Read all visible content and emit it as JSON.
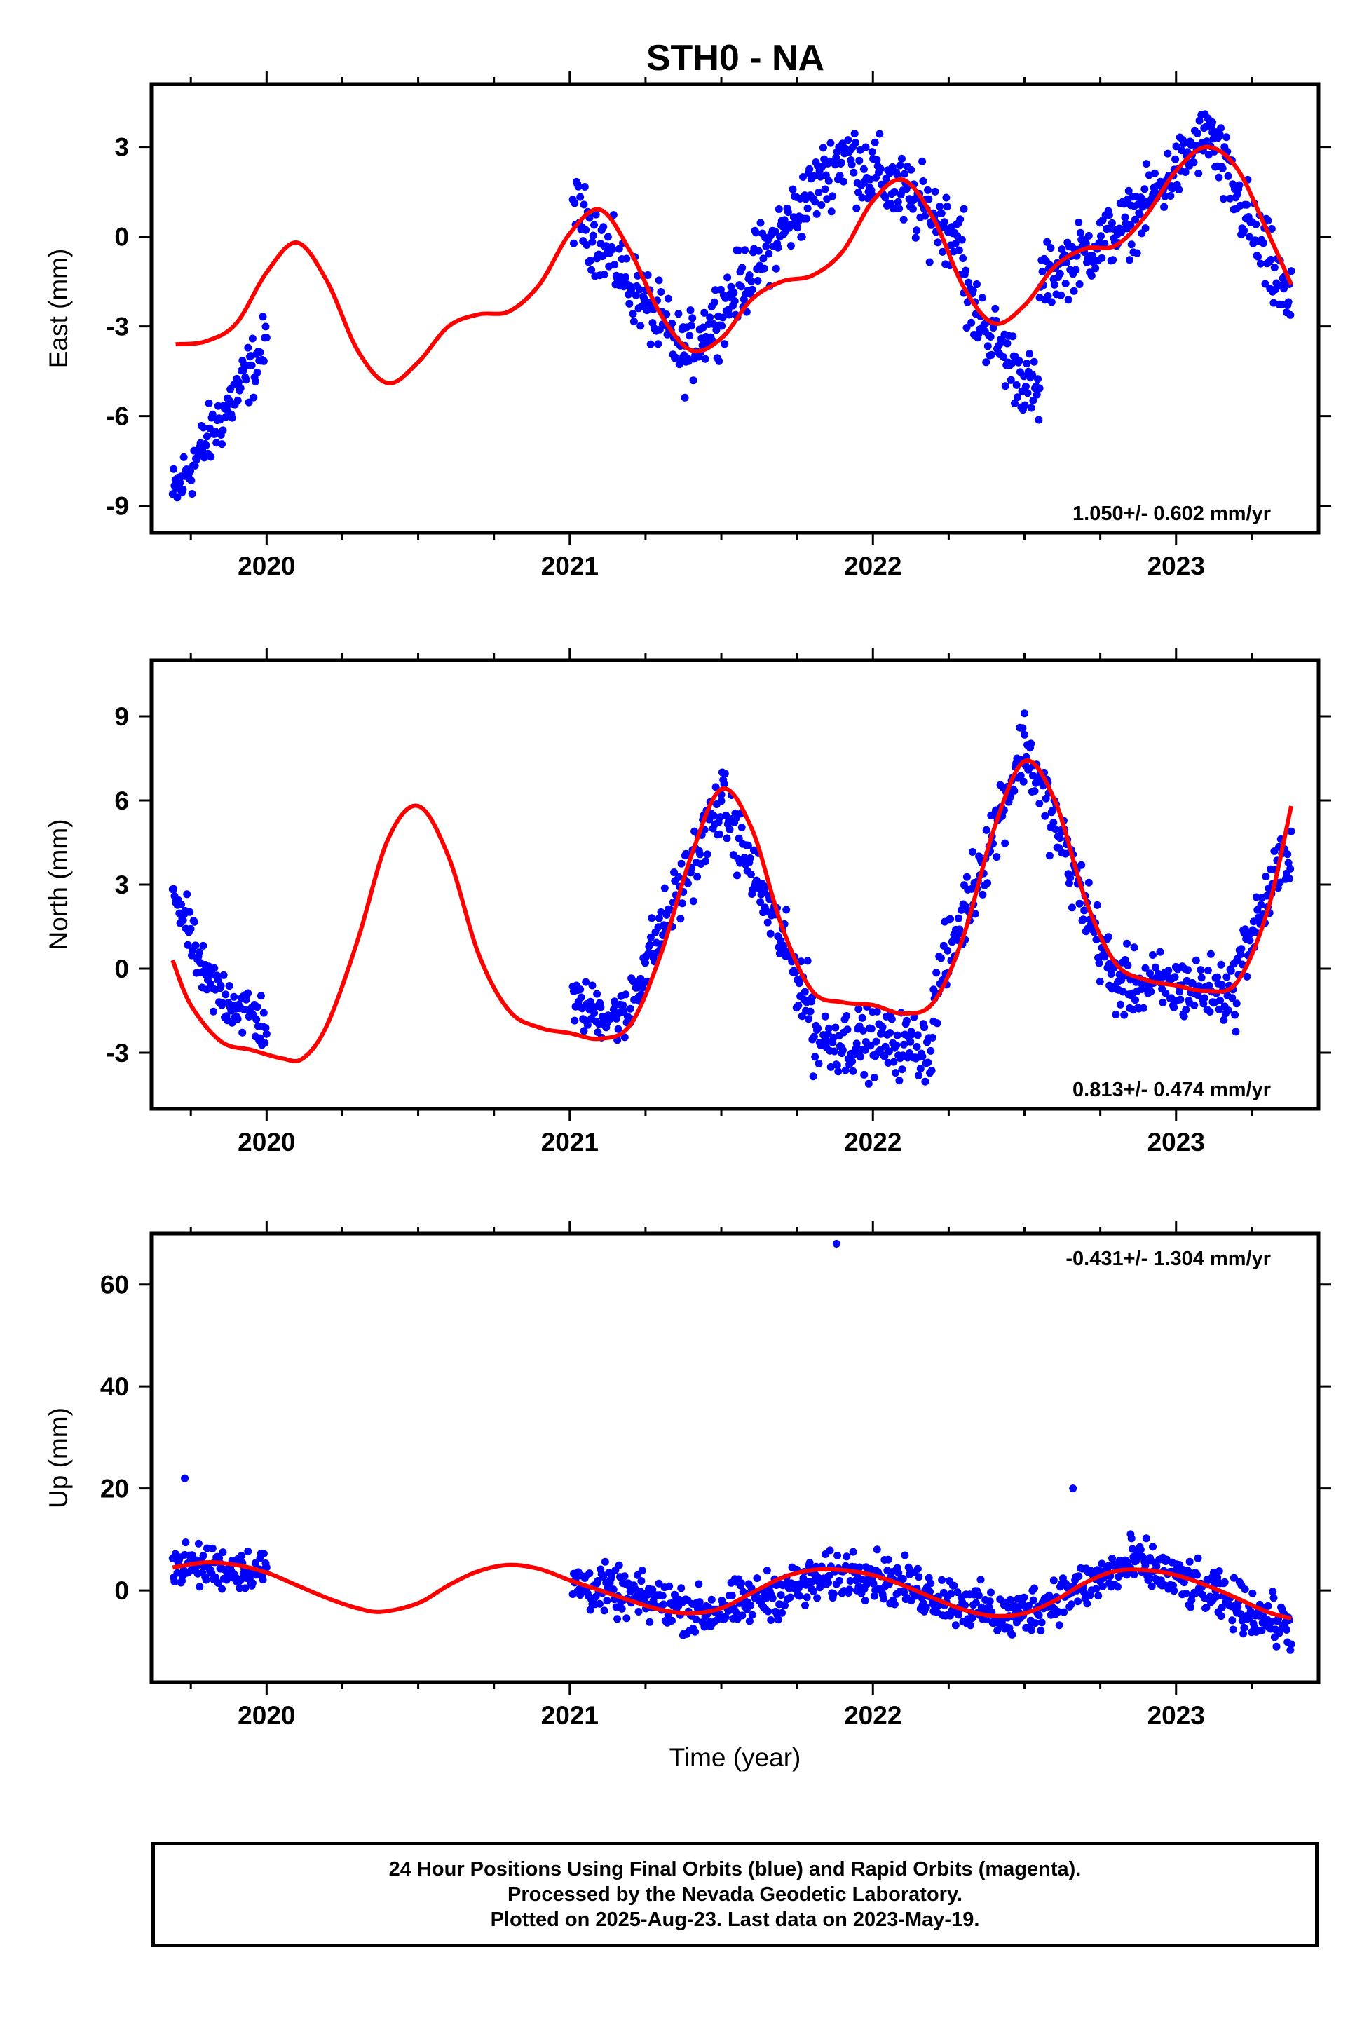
{
  "title": "STH0 - NA",
  "footer": {
    "line1": "24 Hour Positions Using Final Orbits (blue) and Rapid Orbits (magenta).",
    "line2": "Processed by the Nevada Geodetic Laboratory.",
    "line3": "Plotted on 2025-Aug-23. Last data on 2023-May-19."
  },
  "colors": {
    "points": "#0000ff",
    "model": "#ff0000",
    "frame": "#000000"
  },
  "chart_data": [
    {
      "type": "scatter",
      "name": "east",
      "title": "STH0 - NA",
      "ylabel": "East (mm)",
      "xlabel": "",
      "xlim": [
        2019.62,
        2023.47
      ],
      "ylim": [
        -9.9,
        5.1
      ],
      "yticks": [
        -9,
        -6,
        -3,
        0,
        3
      ],
      "xticks": [
        2020,
        2021,
        2022,
        2023
      ],
      "rate_text": "1.050+/- 0.602 mm/yr",
      "rate_position": "bottom-right",
      "model": [
        [
          2019.7,
          -3.6
        ],
        [
          2019.8,
          -3.5
        ],
        [
          2019.9,
          -2.9
        ],
        [
          2020.0,
          -1.2
        ],
        [
          2020.1,
          -0.2
        ],
        [
          2020.2,
          -1.5
        ],
        [
          2020.3,
          -3.8
        ],
        [
          2020.4,
          -4.9
        ],
        [
          2020.5,
          -4.2
        ],
        [
          2020.6,
          -3.0
        ],
        [
          2020.7,
          -2.6
        ],
        [
          2020.8,
          -2.5
        ],
        [
          2020.9,
          -1.6
        ],
        [
          2021.0,
          0.1
        ],
        [
          2021.1,
          0.9
        ],
        [
          2021.2,
          -0.5
        ],
        [
          2021.3,
          -2.6
        ],
        [
          2021.4,
          -3.8
        ],
        [
          2021.5,
          -3.4
        ],
        [
          2021.6,
          -2.1
        ],
        [
          2021.7,
          -1.5
        ],
        [
          2021.8,
          -1.3
        ],
        [
          2021.9,
          -0.5
        ],
        [
          2022.0,
          1.2
        ],
        [
          2022.1,
          1.9
        ],
        [
          2022.2,
          0.6
        ],
        [
          2022.3,
          -1.7
        ],
        [
          2022.4,
          -2.9
        ],
        [
          2022.5,
          -2.3
        ],
        [
          2022.6,
          -1.0
        ],
        [
          2022.7,
          -0.4
        ],
        [
          2022.8,
          -0.3
        ],
        [
          2022.9,
          0.7
        ],
        [
          2023.0,
          2.2
        ],
        [
          2023.1,
          3.0
        ],
        [
          2023.2,
          2.3
        ],
        [
          2023.3,
          0.2
        ],
        [
          2023.38,
          -1.6
        ]
      ],
      "segments": [
        {
          "x0": 2019.69,
          "x1": 2020.0,
          "y0": -8.7,
          "y1": -3.6,
          "amp": 0.5,
          "period": 0,
          "noise": 0.9
        },
        {
          "x0": 2021.01,
          "x1": 2021.38,
          "y0": 1.0,
          "y1": -4.0,
          "amp": 0.0,
          "period": 0,
          "noise": 1.0
        },
        {
          "x0": 2021.38,
          "x1": 2021.9,
          "y0": -4.0,
          "y1": 2.8,
          "amp": 0.0,
          "period": 0,
          "noise": 1.0
        },
        {
          "x0": 2021.9,
          "x1": 2022.3,
          "y0": 2.8,
          "y1": 0.0,
          "amp": 0.0,
          "period": 0,
          "noise": 1.1
        },
        {
          "x0": 2022.3,
          "x1": 2022.55,
          "y0": -2.0,
          "y1": -5.5,
          "amp": 0.0,
          "period": 0,
          "noise": 1.0
        },
        {
          "x0": 2022.55,
          "x1": 2022.85,
          "y0": -1.5,
          "y1": 0.5,
          "amp": 0.0,
          "period": 0,
          "noise": 0.9
        },
        {
          "x0": 2022.85,
          "x1": 2023.12,
          "y0": 0.5,
          "y1": 3.6,
          "amp": 0.0,
          "period": 0,
          "noise": 0.9
        },
        {
          "x0": 2023.12,
          "x1": 2023.38,
          "y0": 3.0,
          "y1": -2.5,
          "amp": 0.0,
          "period": 0,
          "noise": 1.1
        }
      ],
      "points_per_year": 330
    },
    {
      "type": "scatter",
      "name": "north",
      "ylabel": "North (mm)",
      "xlabel": "",
      "xlim": [
        2019.62,
        2023.47
      ],
      "ylim": [
        -5.0,
        11.0
      ],
      "yticks": [
        -3,
        0,
        3,
        6,
        9
      ],
      "xticks": [
        2020,
        2021,
        2022,
        2023
      ],
      "rate_text": "0.813+/- 0.474 mm/yr",
      "rate_position": "bottom-right",
      "model": [
        [
          2019.69,
          0.3
        ],
        [
          2019.75,
          -1.3
        ],
        [
          2019.85,
          -2.6
        ],
        [
          2019.95,
          -2.9
        ],
        [
          2020.05,
          -3.2
        ],
        [
          2020.12,
          -3.2
        ],
        [
          2020.2,
          -2.0
        ],
        [
          2020.3,
          1.0
        ],
        [
          2020.4,
          4.6
        ],
        [
          2020.5,
          5.8
        ],
        [
          2020.6,
          4.0
        ],
        [
          2020.7,
          0.5
        ],
        [
          2020.8,
          -1.5
        ],
        [
          2020.9,
          -2.1
        ],
        [
          2021.0,
          -2.3
        ],
        [
          2021.1,
          -2.5
        ],
        [
          2021.2,
          -2.0
        ],
        [
          2021.3,
          0.5
        ],
        [
          2021.4,
          4.0
        ],
        [
          2021.5,
          6.4
        ],
        [
          2021.6,
          5.0
        ],
        [
          2021.7,
          1.5
        ],
        [
          2021.8,
          -0.8
        ],
        [
          2021.9,
          -1.2
        ],
        [
          2022.0,
          -1.3
        ],
        [
          2022.1,
          -1.6
        ],
        [
          2022.2,
          -1.2
        ],
        [
          2022.3,
          1.2
        ],
        [
          2022.4,
          5.0
        ],
        [
          2022.5,
          7.4
        ],
        [
          2022.6,
          6.0
        ],
        [
          2022.7,
          2.5
        ],
        [
          2022.8,
          0.2
        ],
        [
          2022.9,
          -0.4
        ],
        [
          2023.0,
          -0.6
        ],
        [
          2023.1,
          -0.8
        ],
        [
          2023.2,
          -0.5
        ],
        [
          2023.3,
          2.0
        ],
        [
          2023.38,
          5.8
        ]
      ],
      "segments": [
        {
          "x0": 2019.69,
          "x1": 2019.8,
          "y0": 3.0,
          "y1": -0.5,
          "amp": 0.0,
          "period": 0,
          "noise": 0.8
        },
        {
          "x0": 2019.8,
          "x1": 2020.0,
          "y0": -0.5,
          "y1": -2.0,
          "amp": 0.0,
          "period": 0,
          "noise": 0.9
        },
        {
          "x0": 2021.01,
          "x1": 2021.2,
          "y0": -1.3,
          "y1": -1.8,
          "amp": 0.0,
          "period": 0,
          "noise": 0.8
        },
        {
          "x0": 2021.2,
          "x1": 2021.5,
          "y0": -1.0,
          "y1": 6.0,
          "amp": 0.0,
          "period": 0,
          "noise": 1.0
        },
        {
          "x0": 2021.5,
          "x1": 2021.8,
          "y0": 6.0,
          "y1": -1.5,
          "amp": 0.0,
          "period": 0,
          "noise": 1.0
        },
        {
          "x0": 2021.8,
          "x1": 2022.2,
          "y0": -2.5,
          "y1": -2.8,
          "amp": 0.0,
          "period": 0,
          "noise": 1.0
        },
        {
          "x0": 2022.2,
          "x1": 2022.5,
          "y0": -1.0,
          "y1": 8.0,
          "amp": 0.0,
          "period": 0,
          "noise": 1.1
        },
        {
          "x0": 2022.5,
          "x1": 2022.78,
          "y0": 8.0,
          "y1": 0.0,
          "amp": 0.0,
          "period": 0,
          "noise": 1.1
        },
        {
          "x0": 2022.78,
          "x1": 2023.2,
          "y0": -0.5,
          "y1": -0.8,
          "amp": 0.0,
          "period": 0,
          "noise": 1.0
        },
        {
          "x0": 2023.2,
          "x1": 2023.38,
          "y0": 0.0,
          "y1": 4.5,
          "amp": 0.0,
          "period": 0,
          "noise": 1.0
        }
      ],
      "points_per_year": 330
    },
    {
      "type": "scatter",
      "name": "up",
      "ylabel": "Up (mm)",
      "xlabel": "Time (year)",
      "xlim": [
        2019.62,
        2023.47
      ],
      "ylim": [
        -18,
        70
      ],
      "yticks": [
        0,
        20,
        40,
        60
      ],
      "xticks": [
        2020,
        2021,
        2022,
        2023
      ],
      "rate_text": "-0.431+/- 1.304 mm/yr",
      "rate_position": "top-right",
      "model": [
        [
          2019.69,
          4.5
        ],
        [
          2019.8,
          5.5
        ],
        [
          2019.9,
          5.0
        ],
        [
          2020.0,
          3.5
        ],
        [
          2020.1,
          1.0
        ],
        [
          2020.2,
          -1.5
        ],
        [
          2020.3,
          -3.5
        ],
        [
          2020.38,
          -4.2
        ],
        [
          2020.5,
          -2.5
        ],
        [
          2020.6,
          1.0
        ],
        [
          2020.7,
          3.8
        ],
        [
          2020.8,
          5.0
        ],
        [
          2020.9,
          4.2
        ],
        [
          2021.0,
          2.0
        ],
        [
          2021.1,
          0.0
        ],
        [
          2021.2,
          -2.0
        ],
        [
          2021.3,
          -3.8
        ],
        [
          2021.4,
          -4.5
        ],
        [
          2021.5,
          -3.5
        ],
        [
          2021.6,
          -0.5
        ],
        [
          2021.7,
          2.5
        ],
        [
          2021.8,
          4.0
        ],
        [
          2021.9,
          4.0
        ],
        [
          2022.0,
          3.0
        ],
        [
          2022.1,
          1.0
        ],
        [
          2022.2,
          -1.5
        ],
        [
          2022.3,
          -3.8
        ],
        [
          2022.4,
          -5.0
        ],
        [
          2022.5,
          -4.5
        ],
        [
          2022.6,
          -2.0
        ],
        [
          2022.7,
          1.5
        ],
        [
          2022.8,
          3.8
        ],
        [
          2022.9,
          4.0
        ],
        [
          2023.0,
          3.0
        ],
        [
          2023.1,
          1.0
        ],
        [
          2023.2,
          -1.5
        ],
        [
          2023.3,
          -4.2
        ],
        [
          2023.38,
          -5.5
        ]
      ],
      "segments": [
        {
          "x0": 2019.69,
          "x1": 2020.0,
          "y0": 5.0,
          "y1": 4.0,
          "amp": 0.0,
          "period": 0,
          "noise": 3.5
        },
        {
          "x0": 2021.01,
          "x1": 2021.45,
          "y0": 1.5,
          "y1": -4.5,
          "amp": 0.0,
          "period": 0,
          "noise": 4.0
        },
        {
          "x0": 2021.45,
          "x1": 2021.95,
          "y0": -4.5,
          "y1": 4.0,
          "amp": 0.0,
          "period": 0,
          "noise": 4.0
        },
        {
          "x0": 2021.95,
          "x1": 2022.45,
          "y0": 4.0,
          "y1": -5.5,
          "amp": 0.0,
          "period": 0,
          "noise": 4.0
        },
        {
          "x0": 2022.45,
          "x1": 2022.85,
          "y0": -5.5,
          "y1": 5.0,
          "amp": 0.0,
          "period": 0,
          "noise": 4.0
        },
        {
          "x0": 2022.85,
          "x1": 2023.38,
          "y0": 6.0,
          "y1": -7.5,
          "amp": 0.0,
          "period": 0,
          "noise": 4.0
        }
      ],
      "outliers": [
        [
          2019.73,
          22
        ],
        [
          2021.88,
          68
        ],
        [
          2022.66,
          20
        ]
      ],
      "points_per_year": 330
    }
  ]
}
